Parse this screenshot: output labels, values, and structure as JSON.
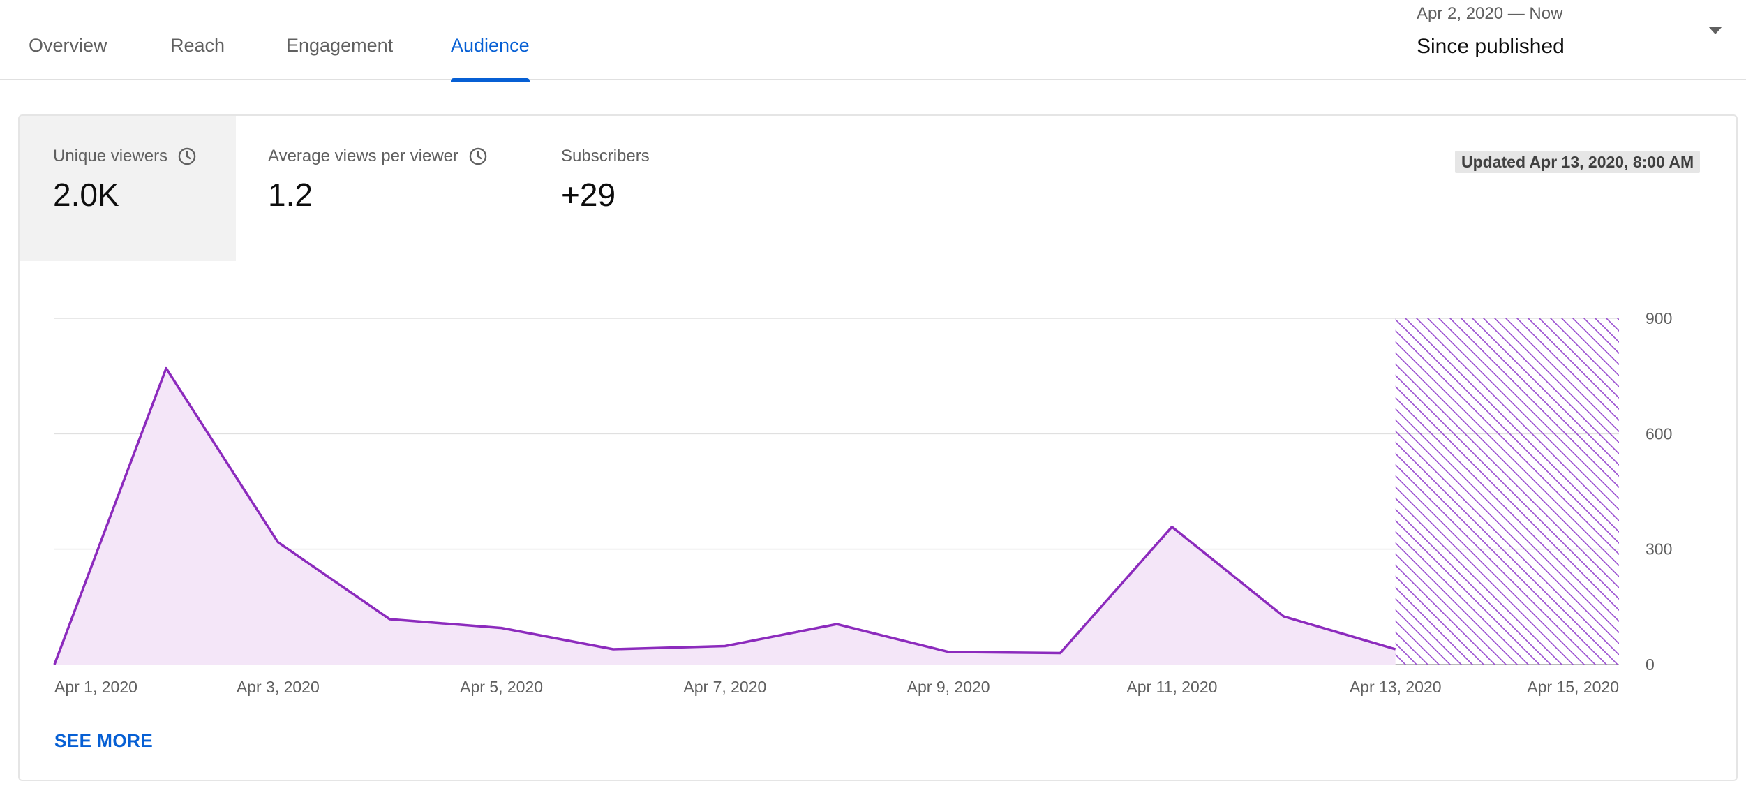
{
  "tabs": [
    {
      "label": "Overview",
      "active": false
    },
    {
      "label": "Reach",
      "active": false
    },
    {
      "label": "Engagement",
      "active": false
    },
    {
      "label": "Audience",
      "active": true
    }
  ],
  "date_range": {
    "range_text": "Apr 2, 2020 — Now",
    "selected": "Since published"
  },
  "metrics": [
    {
      "label": "Unique viewers",
      "value": "2.0K",
      "icon": "clock-icon",
      "selected": true
    },
    {
      "label": "Average views per viewer",
      "value": "1.2",
      "icon": "clock-icon",
      "selected": false
    },
    {
      "label": "Subscribers",
      "value": "+29",
      "selected": false
    }
  ],
  "updated": "Updated Apr 13, 2020, 8:00 AM",
  "see_more": "SEE MORE",
  "colors": {
    "accent": "#065fd4",
    "series_line": "#8c2bbd",
    "series_fill": "#f4e6f8",
    "selected_metric_bg": "#f2f2f2"
  },
  "chart_data": {
    "type": "area",
    "x": [
      "Apr 1, 2020",
      "Apr 2, 2020",
      "Apr 3, 2020",
      "Apr 4, 2020",
      "Apr 5, 2020",
      "Apr 6, 2020",
      "Apr 7, 2020",
      "Apr 8, 2020",
      "Apr 9, 2020",
      "Apr 10, 2020",
      "Apr 11, 2020",
      "Apr 12, 2020",
      "Apr 13, 2020"
    ],
    "x_tick_labels": [
      "Apr 1, 2020",
      "Apr 3, 2020",
      "Apr 5, 2020",
      "Apr 7, 2020",
      "Apr 9, 2020",
      "Apr 11, 2020",
      "Apr 13, 2020",
      "Apr 15, 2020"
    ],
    "x_range": [
      "Apr 1, 2020",
      "Apr 15, 2020"
    ],
    "series": [
      {
        "values": [
          0,
          770,
          318,
          118,
          95,
          40,
          48,
          105,
          33,
          30,
          358,
          125,
          40
        ]
      }
    ],
    "y_ticks": [
      0,
      300,
      600,
      900
    ],
    "ylim": [
      0,
      900
    ],
    "y_axis_side": "right",
    "grid": true,
    "projected_region": {
      "from": "Apr 13, 2020",
      "to": "Apr 15, 2020",
      "style": "hatched"
    }
  }
}
